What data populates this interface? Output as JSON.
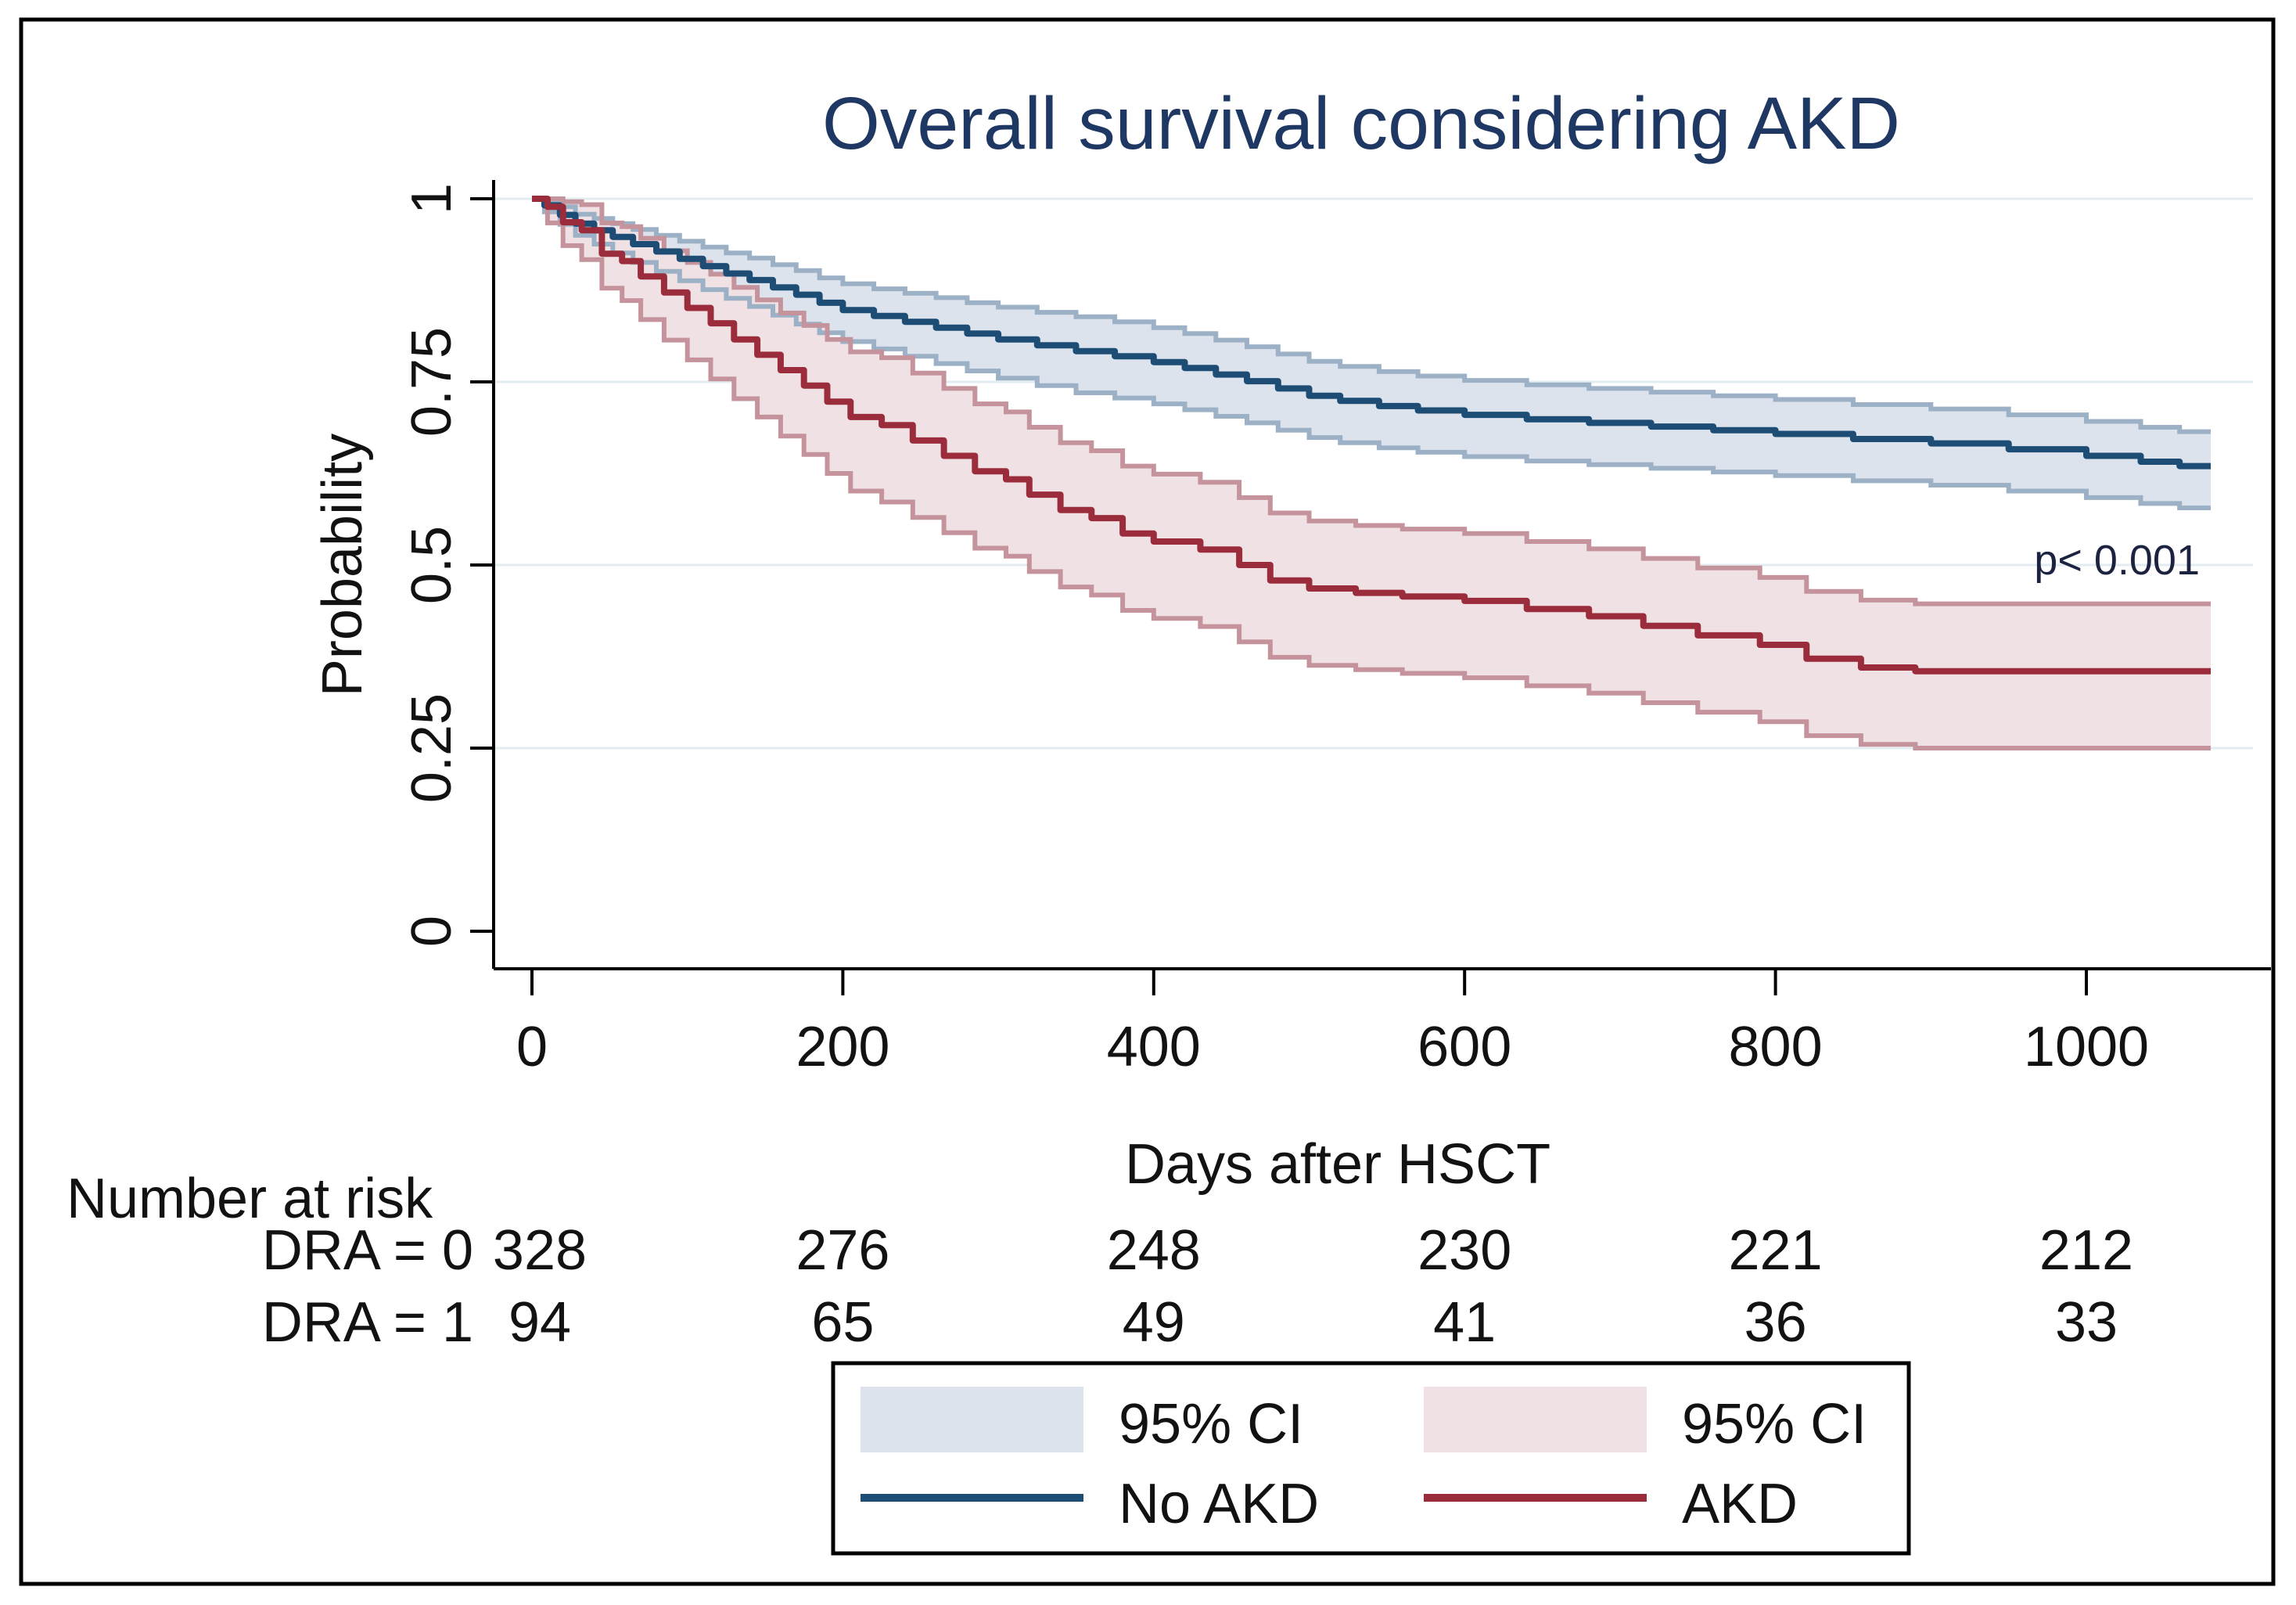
{
  "figure": {
    "title": "Overall survival considering AKD"
  },
  "chart_data": {
    "type": "line",
    "subtype": "kaplan-meier-step-with-ci",
    "title": "Overall survival considering AKD",
    "xlabel": "Days after HSCT",
    "ylabel": "Probability",
    "annotation": "p< 0.001",
    "xlim": [
      0,
      1080
    ],
    "ylim": [
      0,
      1
    ],
    "xticks": [
      0,
      200,
      400,
      600,
      800,
      1000
    ],
    "yticks": [
      {
        "v": 0,
        "label": "0"
      },
      {
        "v": 0.25,
        "label": "0.25"
      },
      {
        "v": 0.5,
        "label": "0.5"
      },
      {
        "v": 0.75,
        "label": "0.75"
      },
      {
        "v": 1,
        "label": "1"
      }
    ],
    "grid": "horizontal-light",
    "colors": {
      "grid": "#e2ecf1",
      "axis": "#000000",
      "title": "#1f3863",
      "no_akd_line": "#1d4d75",
      "no_akd_ci_fill": "#dce3ec",
      "no_akd_ci_edge": "#9cb1c6",
      "akd_line": "#9b2c3b",
      "akd_ci_fill": "#f0e2e4",
      "akd_ci_edge": "#c5939c"
    },
    "series": [
      {
        "name": "No AKD",
        "color": "#1d4d75",
        "ci_fill": "#dce3ec",
        "ci_edge": "#9cb1c6",
        "ci_label": "95% CI",
        "steps": [
          [
            0,
            1
          ],
          [
            8,
            0.991
          ],
          [
            18,
            0.978
          ],
          [
            28,
            0.966
          ],
          [
            40,
            0.957
          ],
          [
            52,
            0.948
          ],
          [
            65,
            0.938
          ],
          [
            80,
            0.928
          ],
          [
            95,
            0.918
          ],
          [
            110,
            0.908
          ],
          [
            125,
            0.898
          ],
          [
            140,
            0.889
          ],
          [
            155,
            0.879
          ],
          [
            170,
            0.869
          ],
          [
            185,
            0.858
          ],
          [
            200,
            0.848
          ],
          [
            220,
            0.84
          ],
          [
            240,
            0.832
          ],
          [
            260,
            0.824
          ],
          [
            280,
            0.816
          ],
          [
            300,
            0.808
          ],
          [
            325,
            0.8
          ],
          [
            350,
            0.792
          ],
          [
            375,
            0.785
          ],
          [
            400,
            0.777
          ],
          [
            420,
            0.769
          ],
          [
            440,
            0.76
          ],
          [
            460,
            0.751
          ],
          [
            480,
            0.741
          ],
          [
            500,
            0.731
          ],
          [
            520,
            0.724
          ],
          [
            545,
            0.717
          ],
          [
            570,
            0.711
          ],
          [
            600,
            0.705
          ],
          [
            640,
            0.699
          ],
          [
            680,
            0.694
          ],
          [
            720,
            0.689
          ],
          [
            760,
            0.684
          ],
          [
            800,
            0.679
          ],
          [
            850,
            0.672
          ],
          [
            900,
            0.666
          ],
          [
            950,
            0.658
          ],
          [
            1000,
            0.649
          ],
          [
            1035,
            0.641
          ],
          [
            1060,
            0.635
          ]
        ],
        "ci_upper": [
          [
            0,
            1
          ],
          [
            8,
            0.998
          ],
          [
            18,
            0.989
          ],
          [
            28,
            0.979
          ],
          [
            40,
            0.973
          ],
          [
            52,
            0.966
          ],
          [
            65,
            0.958
          ],
          [
            80,
            0.95
          ],
          [
            95,
            0.942
          ],
          [
            110,
            0.934
          ],
          [
            125,
            0.926
          ],
          [
            140,
            0.919
          ],
          [
            155,
            0.91
          ],
          [
            170,
            0.902
          ],
          [
            185,
            0.892
          ],
          [
            200,
            0.884
          ],
          [
            220,
            0.877
          ],
          [
            240,
            0.871
          ],
          [
            260,
            0.865
          ],
          [
            280,
            0.858
          ],
          [
            300,
            0.852
          ],
          [
            325,
            0.845
          ],
          [
            350,
            0.839
          ],
          [
            375,
            0.832
          ],
          [
            400,
            0.824
          ],
          [
            420,
            0.816
          ],
          [
            440,
            0.807
          ],
          [
            460,
            0.798
          ],
          [
            480,
            0.788
          ],
          [
            500,
            0.778
          ],
          [
            520,
            0.771
          ],
          [
            545,
            0.764
          ],
          [
            570,
            0.758
          ],
          [
            600,
            0.752
          ],
          [
            640,
            0.746
          ],
          [
            680,
            0.741
          ],
          [
            720,
            0.736
          ],
          [
            760,
            0.731
          ],
          [
            800,
            0.726
          ],
          [
            850,
            0.719
          ],
          [
            900,
            0.713
          ],
          [
            950,
            0.705
          ],
          [
            1000,
            0.696
          ],
          [
            1035,
            0.688
          ],
          [
            1060,
            0.682
          ]
        ],
        "ci_lower": [
          [
            0,
            1
          ],
          [
            8,
            0.982
          ],
          [
            18,
            0.965
          ],
          [
            28,
            0.95
          ],
          [
            40,
            0.938
          ],
          [
            52,
            0.926
          ],
          [
            65,
            0.913
          ],
          [
            80,
            0.901
          ],
          [
            95,
            0.888
          ],
          [
            110,
            0.876
          ],
          [
            125,
            0.864
          ],
          [
            140,
            0.853
          ],
          [
            155,
            0.841
          ],
          [
            170,
            0.829
          ],
          [
            185,
            0.817
          ],
          [
            200,
            0.805
          ],
          [
            220,
            0.795
          ],
          [
            240,
            0.785
          ],
          [
            260,
            0.775
          ],
          [
            280,
            0.765
          ],
          [
            300,
            0.755
          ],
          [
            325,
            0.745
          ],
          [
            350,
            0.735
          ],
          [
            375,
            0.728
          ],
          [
            400,
            0.72
          ],
          [
            420,
            0.712
          ],
          [
            440,
            0.703
          ],
          [
            460,
            0.694
          ],
          [
            480,
            0.684
          ],
          [
            500,
            0.674
          ],
          [
            520,
            0.667
          ],
          [
            545,
            0.66
          ],
          [
            570,
            0.654
          ],
          [
            600,
            0.648
          ],
          [
            640,
            0.642
          ],
          [
            680,
            0.637
          ],
          [
            720,
            0.632
          ],
          [
            760,
            0.627
          ],
          [
            800,
            0.622
          ],
          [
            850,
            0.615
          ],
          [
            900,
            0.609
          ],
          [
            950,
            0.601
          ],
          [
            1000,
            0.592
          ],
          [
            1035,
            0.584
          ],
          [
            1060,
            0.578
          ]
        ]
      },
      {
        "name": "AKD",
        "color": "#9b2c3b",
        "ci_fill": "#f0e2e4",
        "ci_edge": "#c5939c",
        "ci_label": "95% CI",
        "steps": [
          [
            0,
            1
          ],
          [
            10,
            0.989
          ],
          [
            20,
            0.968
          ],
          [
            32,
            0.957
          ],
          [
            45,
            0.925
          ],
          [
            58,
            0.915
          ],
          [
            70,
            0.894
          ],
          [
            85,
            0.872
          ],
          [
            100,
            0.851
          ],
          [
            115,
            0.83
          ],
          [
            130,
            0.808
          ],
          [
            145,
            0.787
          ],
          [
            160,
            0.766
          ],
          [
            175,
            0.745
          ],
          [
            190,
            0.723
          ],
          [
            205,
            0.702
          ],
          [
            225,
            0.691
          ],
          [
            245,
            0.67
          ],
          [
            265,
            0.649
          ],
          [
            285,
            0.628
          ],
          [
            305,
            0.617
          ],
          [
            320,
            0.596
          ],
          [
            340,
            0.575
          ],
          [
            360,
            0.564
          ],
          [
            380,
            0.543
          ],
          [
            400,
            0.532
          ],
          [
            430,
            0.521
          ],
          [
            455,
            0.5
          ],
          [
            475,
            0.479
          ],
          [
            500,
            0.468
          ],
          [
            530,
            0.462
          ],
          [
            560,
            0.457
          ],
          [
            600,
            0.451
          ],
          [
            640,
            0.44
          ],
          [
            680,
            0.43
          ],
          [
            715,
            0.417
          ],
          [
            750,
            0.404
          ],
          [
            790,
            0.391
          ],
          [
            820,
            0.372
          ],
          [
            855,
            0.36
          ],
          [
            890,
            0.355
          ]
        ],
        "ci_upper": [
          [
            0,
            1
          ],
          [
            10,
            1
          ],
          [
            20,
            0.996
          ],
          [
            32,
            0.992
          ],
          [
            45,
            0.967
          ],
          [
            58,
            0.962
          ],
          [
            70,
            0.946
          ],
          [
            85,
            0.929
          ],
          [
            100,
            0.913
          ],
          [
            115,
            0.897
          ],
          [
            130,
            0.879
          ],
          [
            145,
            0.862
          ],
          [
            160,
            0.844
          ],
          [
            175,
            0.827
          ],
          [
            190,
            0.808
          ],
          [
            205,
            0.791
          ],
          [
            225,
            0.783
          ],
          [
            245,
            0.762
          ],
          [
            265,
            0.741
          ],
          [
            285,
            0.72
          ],
          [
            305,
            0.709
          ],
          [
            320,
            0.688
          ],
          [
            340,
            0.667
          ],
          [
            360,
            0.656
          ],
          [
            380,
            0.635
          ],
          [
            400,
            0.624
          ],
          [
            430,
            0.613
          ],
          [
            455,
            0.592
          ],
          [
            475,
            0.571
          ],
          [
            500,
            0.56
          ],
          [
            530,
            0.554
          ],
          [
            560,
            0.549
          ],
          [
            600,
            0.543
          ],
          [
            640,
            0.532
          ],
          [
            680,
            0.522
          ],
          [
            715,
            0.509
          ],
          [
            750,
            0.496
          ],
          [
            790,
            0.483
          ],
          [
            820,
            0.464
          ],
          [
            855,
            0.452
          ],
          [
            890,
            0.447
          ]
        ],
        "ci_lower": [
          [
            0,
            1
          ],
          [
            10,
            0.967
          ],
          [
            20,
            0.936
          ],
          [
            32,
            0.917
          ],
          [
            45,
            0.878
          ],
          [
            58,
            0.861
          ],
          [
            70,
            0.835
          ],
          [
            85,
            0.807
          ],
          [
            100,
            0.78
          ],
          [
            115,
            0.754
          ],
          [
            130,
            0.727
          ],
          [
            145,
            0.702
          ],
          [
            160,
            0.676
          ],
          [
            175,
            0.651
          ],
          [
            190,
            0.625
          ],
          [
            205,
            0.601
          ],
          [
            225,
            0.586
          ],
          [
            245,
            0.565
          ],
          [
            265,
            0.544
          ],
          [
            285,
            0.523
          ],
          [
            305,
            0.512
          ],
          [
            320,
            0.491
          ],
          [
            340,
            0.47
          ],
          [
            360,
            0.459
          ],
          [
            380,
            0.438
          ],
          [
            400,
            0.427
          ],
          [
            430,
            0.416
          ],
          [
            455,
            0.395
          ],
          [
            475,
            0.374
          ],
          [
            500,
            0.363
          ],
          [
            530,
            0.357
          ],
          [
            560,
            0.352
          ],
          [
            600,
            0.346
          ],
          [
            640,
            0.335
          ],
          [
            680,
            0.325
          ],
          [
            715,
            0.312
          ],
          [
            750,
            0.299
          ],
          [
            790,
            0.286
          ],
          [
            820,
            0.267
          ],
          [
            855,
            0.255
          ],
          [
            890,
            0.25
          ]
        ]
      }
    ],
    "risk_table": {
      "title": "Number at risk",
      "times": [
        0,
        200,
        400,
        600,
        800,
        1000
      ],
      "rows": [
        {
          "label": "DRA = 0",
          "values": [
            "328",
            "276",
            "248",
            "230",
            "221",
            "212"
          ]
        },
        {
          "label": "DRA = 1",
          "values": [
            "94",
            "65",
            "49",
            "41",
            "36",
            "33"
          ]
        }
      ]
    },
    "legend": {
      "position": "bottom-center",
      "items": [
        {
          "type": "area",
          "label": "95% CI",
          "series": "No AKD"
        },
        {
          "type": "area",
          "label": "95% CI",
          "series": "AKD"
        },
        {
          "type": "line",
          "label": "No AKD",
          "series": "No AKD"
        },
        {
          "type": "line",
          "label": "AKD",
          "series": "AKD"
        }
      ]
    }
  }
}
